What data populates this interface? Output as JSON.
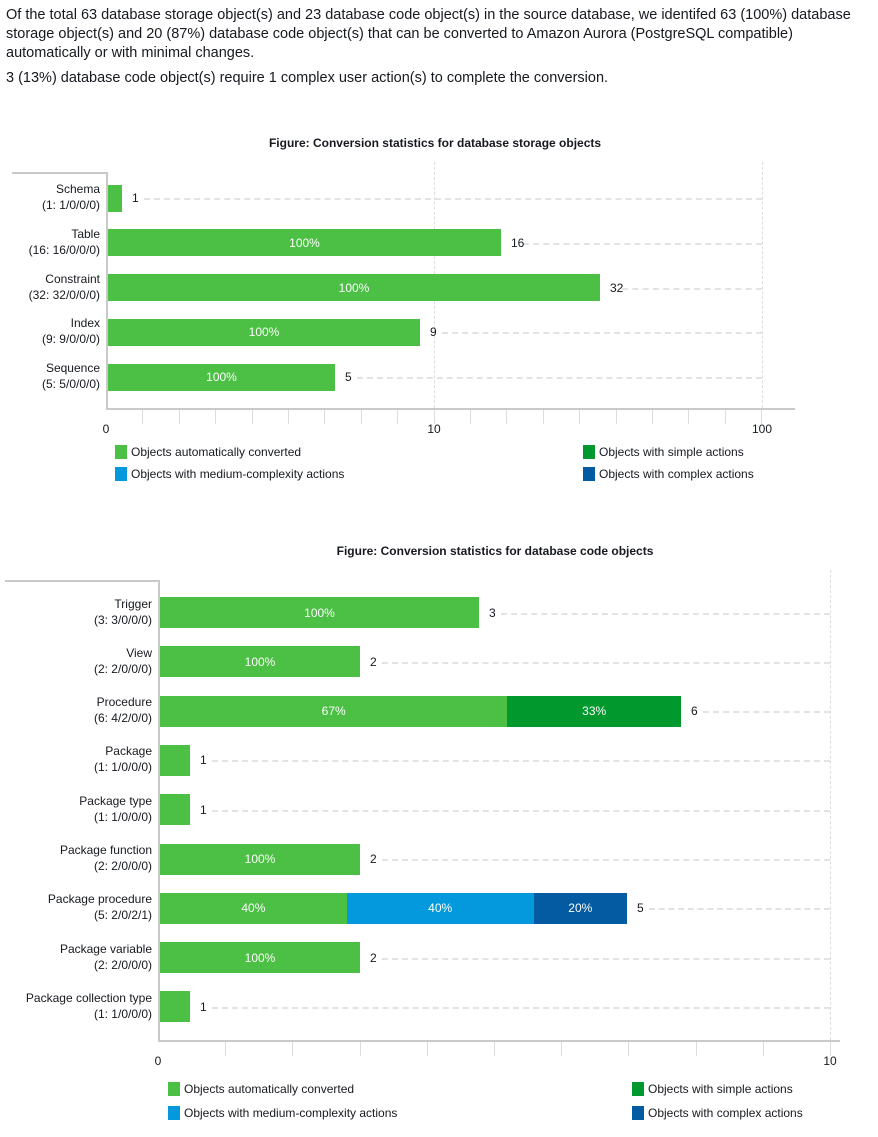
{
  "summary": {
    "paragraph1": "Of the total 63 database storage object(s) and 23 database code object(s) in the source database, we identifed 63 (100%) database storage object(s) and 20 (87%) database code object(s) that can be converted to Amazon Aurora (PostgreSQL compatible) automatically or with minimal changes.",
    "paragraph2": "3 (13%) database code object(s) require 1 complex user action(s) to complete the conversion."
  },
  "colors": {
    "auto": "#4cbf45",
    "simple": "#01992d",
    "medium": "#0499dd",
    "complex": "#045ba2"
  },
  "legend": [
    {
      "key": "auto",
      "label": "Objects automatically converted"
    },
    {
      "key": "simple",
      "label": "Objects with simple actions"
    },
    {
      "key": "medium",
      "label": "Objects with medium-complexity actions"
    },
    {
      "key": "complex",
      "label": "Objects with complex actions"
    }
  ],
  "chart_data": [
    {
      "type": "bar",
      "orientation": "horizontal",
      "stacked": true,
      "scale": "log",
      "title": "Figure: Conversion statistics for database storage objects",
      "x_ticks": [
        "0",
        "10",
        "100"
      ],
      "grid": true,
      "legend": "bottom",
      "categories": [
        {
          "name": "Schema",
          "detail": "(1: 1/0/0/0)",
          "total": 1,
          "segments": [
            {
              "key": "auto",
              "value": 1,
              "label": ""
            }
          ]
        },
        {
          "name": "Table",
          "detail": "(16: 16/0/0/0)",
          "total": 16,
          "segments": [
            {
              "key": "auto",
              "value": 16,
              "label": "100%"
            }
          ]
        },
        {
          "name": "Constraint",
          "detail": "(32: 32/0/0/0)",
          "total": 32,
          "segments": [
            {
              "key": "auto",
              "value": 32,
              "label": "100%"
            }
          ]
        },
        {
          "name": "Index",
          "detail": "(9: 9/0/0/0)",
          "total": 9,
          "segments": [
            {
              "key": "auto",
              "value": 9,
              "label": "100%"
            }
          ]
        },
        {
          "name": "Sequence",
          "detail": "(5: 5/0/0/0)",
          "total": 5,
          "segments": [
            {
              "key": "auto",
              "value": 5,
              "label": "100%"
            }
          ]
        }
      ]
    },
    {
      "type": "bar",
      "orientation": "horizontal",
      "stacked": true,
      "title": "Figure: Conversion statistics for database code objects",
      "x_ticks": [
        "0",
        "10"
      ],
      "grid": true,
      "legend": "bottom",
      "categories": [
        {
          "name": "Trigger",
          "detail": "(3: 3/0/0/0)",
          "total": 3,
          "segments": [
            {
              "key": "auto",
              "value": 3,
              "label": "100%"
            }
          ]
        },
        {
          "name": "View",
          "detail": "(2: 2/0/0/0)",
          "total": 2,
          "segments": [
            {
              "key": "auto",
              "value": 2,
              "label": "100%"
            }
          ]
        },
        {
          "name": "Procedure",
          "detail": "(6: 4/2/0/0)",
          "total": 6,
          "segments": [
            {
              "key": "auto",
              "value": 4,
              "label": "67%"
            },
            {
              "key": "simple",
              "value": 2,
              "label": "33%"
            }
          ]
        },
        {
          "name": "Package",
          "detail": "(1: 1/0/0/0)",
          "total": 1,
          "segments": [
            {
              "key": "auto",
              "value": 1,
              "label": ""
            }
          ]
        },
        {
          "name": "Package type",
          "detail": "(1: 1/0/0/0)",
          "total": 1,
          "segments": [
            {
              "key": "auto",
              "value": 1,
              "label": ""
            }
          ]
        },
        {
          "name": "Package function",
          "detail": "(2: 2/0/0/0)",
          "total": 2,
          "segments": [
            {
              "key": "auto",
              "value": 2,
              "label": "100%"
            }
          ]
        },
        {
          "name": "Package procedure",
          "detail": "(5: 2/0/2/1)",
          "total": 5,
          "segments": [
            {
              "key": "auto",
              "value": 2,
              "label": "40%"
            },
            {
              "key": "medium",
              "value": 2,
              "label": "40%"
            },
            {
              "key": "complex",
              "value": 1,
              "label": "20%"
            }
          ]
        },
        {
          "name": "Package variable",
          "detail": "(2: 2/0/0/0)",
          "total": 2,
          "segments": [
            {
              "key": "auto",
              "value": 2,
              "label": "100%"
            }
          ]
        },
        {
          "name": "Package collection type",
          "detail": "(1: 1/0/0/0)",
          "total": 1,
          "segments": [
            {
              "key": "auto",
              "value": 1,
              "label": ""
            }
          ]
        }
      ]
    }
  ]
}
